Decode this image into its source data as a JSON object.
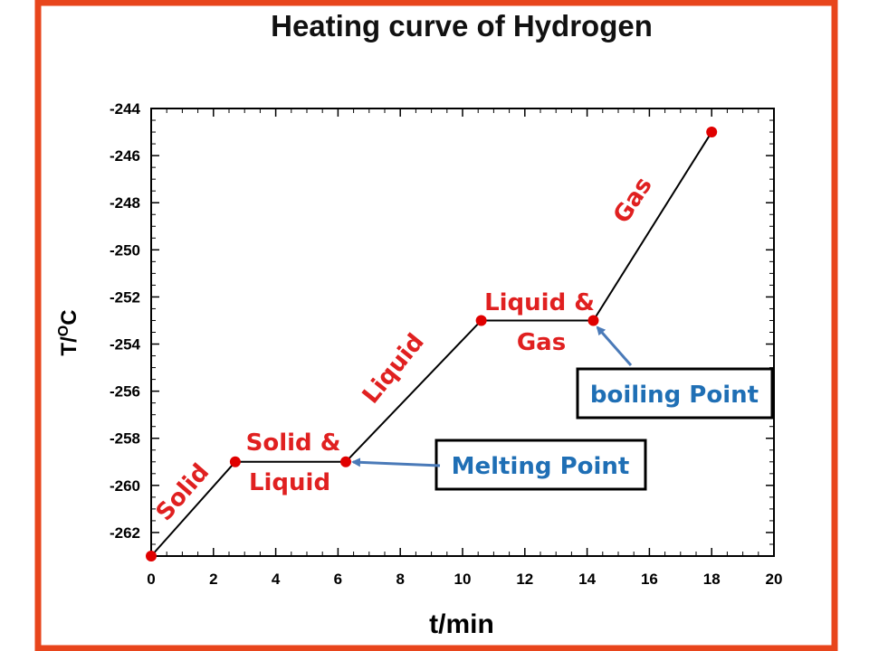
{
  "chart_data": {
    "type": "line",
    "title": "Heating curve of Hydrogen",
    "xlabel": "t/min",
    "ylabel": "T/",
    "ylabel_sup": "O",
    "ylabel_tail": "C",
    "xlim": [
      0,
      20
    ],
    "ylim": [
      -263,
      -244
    ],
    "x_ticks": [
      "0",
      "2",
      "4",
      "6",
      "8",
      "10",
      "12",
      "14",
      "16",
      "18",
      "20"
    ],
    "y_ticks": [
      "-244",
      "-246",
      "-248",
      "-250",
      "-252",
      "-254",
      "-256",
      "-258",
      "-260",
      "-262"
    ],
    "grid": false,
    "series": [
      {
        "x": [
          0,
          2.7,
          6.25,
          10.6,
          14.2,
          18
        ],
        "y": [
          -263,
          -259,
          -259,
          -253,
          -253,
          -245
        ]
      }
    ],
    "annotations": {
      "solid": "Solid",
      "solid_liquid": [
        "Solid &",
        "Liquid"
      ],
      "liquid": "Liquid",
      "liquid_gas": [
        "Liquid &",
        "Gas"
      ],
      "gas": "Gas",
      "melting_point": "Melting Point",
      "boiling_point": "boiling Point"
    }
  },
  "colors": {
    "frame": "#e8451c",
    "line": "#000000",
    "marker": "#e00000",
    "phase_text": "#e02020",
    "callout_text": "#1f6fb5",
    "arrow": "#4a7ab8"
  }
}
